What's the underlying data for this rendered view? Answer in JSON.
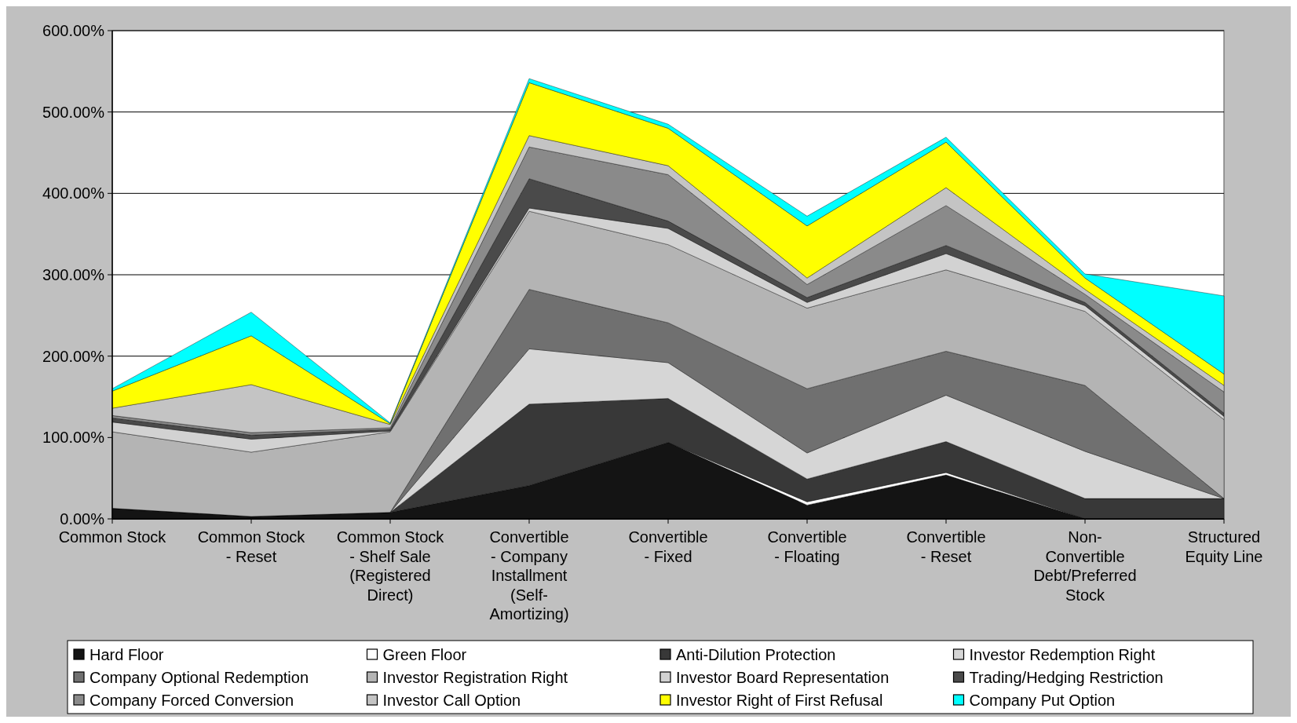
{
  "chart_data": {
    "type": "area",
    "stacked": true,
    "categories": [
      "Common Stock",
      "Common Stock - Reset",
      "Common Stock - Shelf Sale (Registered Direct)",
      "Convertible - Company Installment (Self-Amortizing)",
      "Convertible - Fixed",
      "Convertible - Floating",
      "Convertible - Reset",
      "Non-Convertible Debt/Preferred Stock",
      "Structured Equity Line"
    ],
    "series": [
      {
        "name": "Hard Floor",
        "color": "#141414",
        "values": [
          13,
          3,
          8,
          41,
          94,
          17,
          54,
          0,
          0
        ]
      },
      {
        "name": "Green Floor",
        "color": "#ffffff",
        "values": [
          null,
          null,
          null,
          null,
          0,
          4,
          3,
          0,
          0
        ]
      },
      {
        "name": "Anti-Dilution Protection",
        "color": "#383838",
        "values": [
          0,
          0,
          0,
          100,
          54,
          28,
          38,
          25,
          25
        ]
      },
      {
        "name": "Investor Redemption Right",
        "color": "#d6d6d6",
        "values": [
          0,
          0,
          0,
          68,
          44,
          32,
          57,
          58,
          0
        ]
      },
      {
        "name": "Company Optional Redemption",
        "color": "#707070",
        "values": [
          0,
          0,
          0,
          73,
          49,
          79,
          54,
          81,
          0
        ]
      },
      {
        "name": "Investor Registration Right",
        "color": "#b4b4b4",
        "values": [
          94,
          79,
          99,
          96,
          96,
          99,
          100,
          91,
          97
        ]
      },
      {
        "name": "Investor Board Representation",
        "color": "#d2d2d2",
        "values": [
          12,
          16,
          1,
          4,
          20,
          7,
          20,
          7,
          4
        ]
      },
      {
        "name": "Trading/Hedging Restriction",
        "color": "#4a4a4a",
        "values": [
          5,
          5,
          2,
          36,
          9,
          6,
          10,
          4,
          4
        ]
      },
      {
        "name": "Company Forced Conversion",
        "color": "#8a8a8a",
        "values": [
          3,
          3,
          2,
          39,
          57,
          16,
          49,
          10,
          26
        ]
      },
      {
        "name": "Investor Call Option",
        "color": "#c4c4c4",
        "values": [
          9,
          59,
          4,
          14,
          11,
          8,
          22,
          6,
          8
        ]
      },
      {
        "name": "Investor Right of First Refusal",
        "color": "#ffff00",
        "values": [
          21,
          60,
          1,
          65,
          46,
          64,
          56,
          14,
          14
        ]
      },
      {
        "name": "Company Put Option",
        "color": "#00ffff",
        "values": [
          3,
          29,
          1,
          5,
          5,
          12,
          6,
          5,
          96
        ]
      }
    ],
    "ylim": [
      0,
      600
    ],
    "yticks": [
      {
        "value": 0,
        "label": "0.00%"
      },
      {
        "value": 100,
        "label": "100.00%"
      },
      {
        "value": 200,
        "label": "200.00%"
      },
      {
        "value": 300,
        "label": "300.00%"
      },
      {
        "value": 400,
        "label": "400.00%"
      },
      {
        "value": 500,
        "label": "500.00%"
      },
      {
        "value": 600,
        "label": "600.00%"
      }
    ],
    "grid": "y",
    "legend": "bottom"
  }
}
